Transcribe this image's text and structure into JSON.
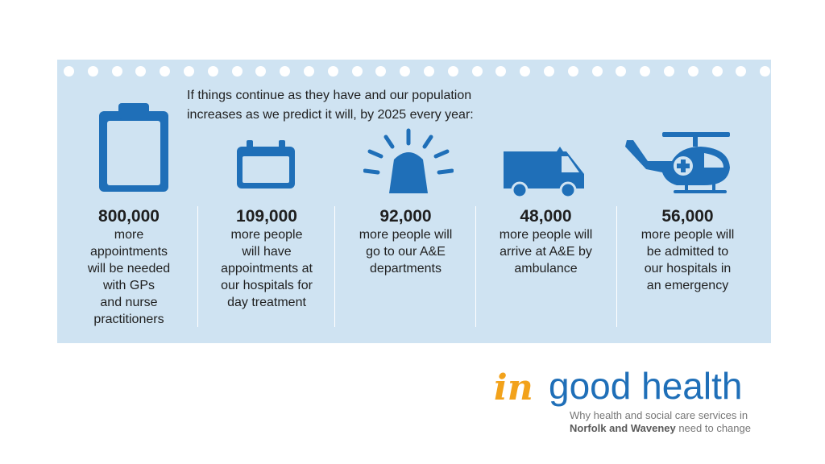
{
  "intro": {
    "line1": "If things continue as they have and our population",
    "line2": "increases as we predict it will, by 2025 every year:"
  },
  "stats": [
    {
      "number": "800,000",
      "text": "more\nappointments\nwill be needed\nwith GPs\nand nurse\npractitioners",
      "icon": "clipboard-icon"
    },
    {
      "number": "109,000",
      "text": "more people\nwill have\nappointments at\nour hospitals for\nday treatment",
      "icon": "calendar-icon"
    },
    {
      "number": "92,000",
      "text": "more people will\ngo to our A&E\ndepartments",
      "icon": "siren-icon"
    },
    {
      "number": "48,000",
      "text": "more people will\narrive at A&E by\nambulance",
      "icon": "ambulance-icon"
    },
    {
      "number": "56,000",
      "text": "more people will\nbe admitted to\nour hospitals in\nan emergency",
      "icon": "helicopter-icon"
    }
  ],
  "logo": {
    "in": "in",
    "main": "good health",
    "sub1": "Why health and social care services in",
    "sub2_bold": "Norfolk and Waveney",
    "sub2_rest": " need to change"
  },
  "colors": {
    "panel": "#cfe3f2",
    "icon": "#1f6fb8",
    "accent": "#f2a21b"
  }
}
